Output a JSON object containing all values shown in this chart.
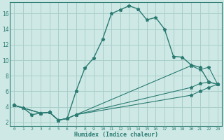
{
  "xlabel": "Humidex (Indice chaleur)",
  "bg_color": "#cee9e5",
  "grid_color": "#a8ceca",
  "line_color": "#2a7a72",
  "xlim": [
    -0.5,
    23.5
  ],
  "ylim": [
    1.5,
    17.5
  ],
  "xticks": [
    0,
    1,
    2,
    3,
    4,
    5,
    6,
    7,
    8,
    9,
    10,
    11,
    12,
    13,
    14,
    15,
    16,
    17,
    18,
    19,
    20,
    21,
    22,
    23
  ],
  "yticks": [
    2,
    4,
    6,
    8,
    10,
    12,
    14,
    16
  ],
  "series": [
    {
      "x": [
        0,
        1,
        2,
        3,
        4,
        5,
        6,
        7,
        8,
        9,
        10,
        11,
        12,
        13,
        14,
        15,
        16,
        17,
        18,
        19,
        20,
        21,
        22,
        23
      ],
      "y": [
        4.2,
        3.9,
        3.0,
        3.2,
        3.3,
        2.3,
        2.5,
        6.0,
        9.0,
        10.3,
        12.7,
        16.0,
        16.5,
        17.0,
        16.6,
        15.2,
        15.5,
        14.0,
        10.5,
        10.4,
        9.4,
        9.1,
        7.2,
        6.9
      ]
    },
    {
      "x": [
        0,
        3,
        4,
        5,
        6,
        7,
        20,
        21,
        22,
        23
      ],
      "y": [
        4.2,
        3.2,
        3.3,
        2.3,
        2.5,
        3.0,
        9.3,
        8.8,
        9.1,
        6.9
      ]
    },
    {
      "x": [
        0,
        3,
        4,
        5,
        6,
        7,
        20,
        21,
        22,
        23
      ],
      "y": [
        4.2,
        3.2,
        3.3,
        2.3,
        2.5,
        3.0,
        6.5,
        7.0,
        7.2,
        6.9
      ]
    },
    {
      "x": [
        0,
        3,
        4,
        5,
        6,
        7,
        20,
        21,
        22,
        23
      ],
      "y": [
        4.2,
        3.2,
        3.3,
        2.3,
        2.5,
        3.0,
        5.5,
        6.0,
        6.5,
        6.9
      ]
    }
  ]
}
